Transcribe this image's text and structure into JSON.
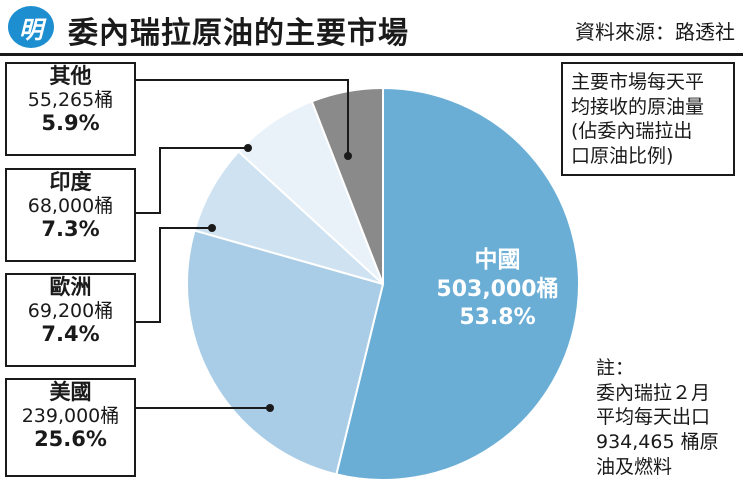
{
  "header": {
    "logo_text": "明",
    "title": "委內瑞拉原油的主要市場",
    "source": "資料來源：路透社"
  },
  "legend_box": {
    "lines": [
      "主要市場每天平",
      "均接收的原油量",
      "(佔委內瑞拉出",
      "口原油比例)"
    ]
  },
  "note": {
    "lines": [
      "註：",
      "委內瑞拉２月",
      "平均每天出口",
      "934,465 桶原",
      "油及燃料"
    ]
  },
  "chart_data": {
    "type": "pie",
    "slices": [
      {
        "name": "中國",
        "value_label": "503,000桶",
        "value": 503000,
        "percent": 53.8,
        "percent_label": "53.8%",
        "color": "#6aaed6"
      },
      {
        "name": "美國",
        "value_label": "239,000桶",
        "value": 239000,
        "percent": 25.6,
        "percent_label": "25.6%",
        "color": "#a9cde6"
      },
      {
        "name": "歐洲",
        "value_label": "69,200桶",
        "value": 69200,
        "percent": 7.4,
        "percent_label": "7.4%",
        "color": "#cfe2f1"
      },
      {
        "name": "印度",
        "value_label": "68,000桶",
        "value": 68000,
        "percent": 7.3,
        "percent_label": "7.3%",
        "color": "#eaf2f9"
      },
      {
        "name": "其他",
        "value_label": "55,265桶",
        "value": 55265,
        "percent": 5.9,
        "percent_label": "5.9%",
        "color": "#8a8a8a"
      }
    ]
  }
}
